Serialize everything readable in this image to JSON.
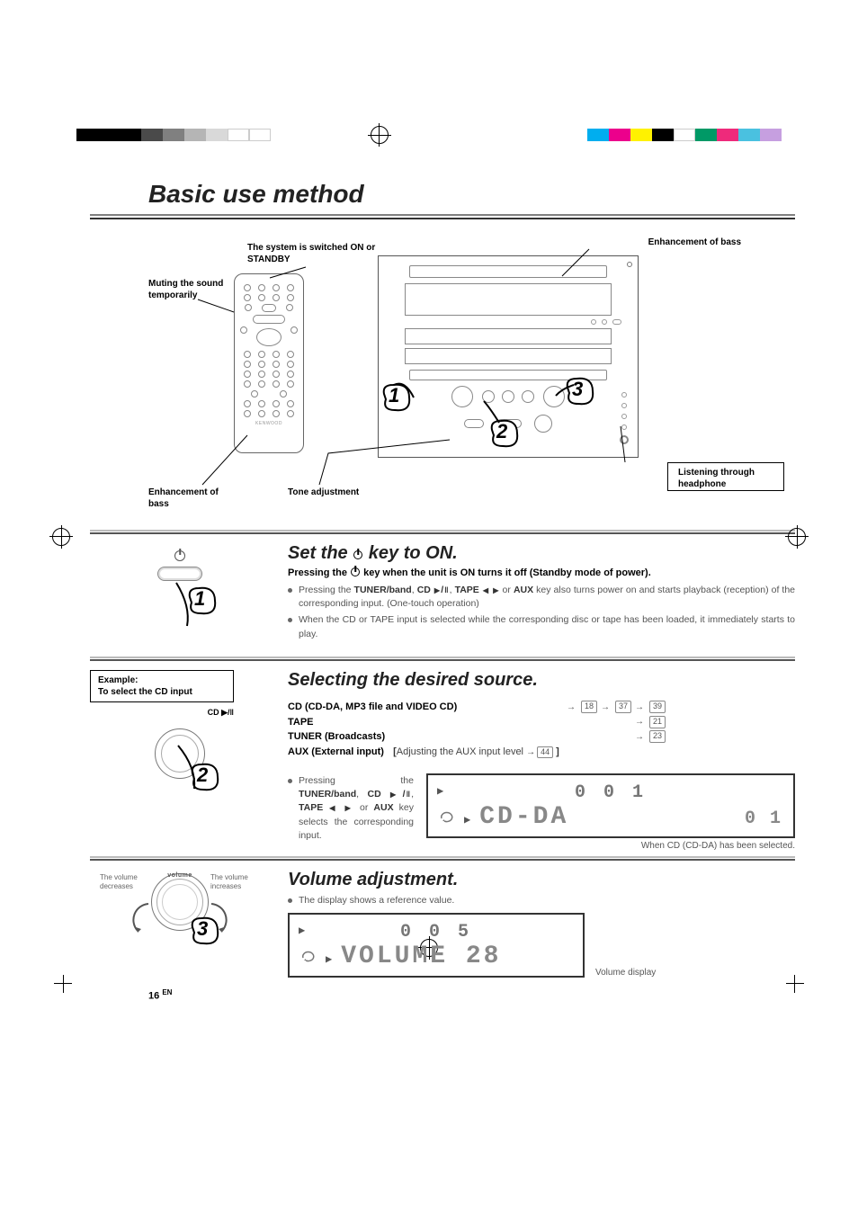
{
  "colorstrip_left": [
    "#000000",
    "#000000",
    "#000000",
    "#4a4a4a",
    "#808080",
    "#b5b5b5",
    "#d9d9d9",
    "#ffffff",
    "#ffffff"
  ],
  "colorstrip_right": [
    "#00aeef",
    "#ec008c",
    "#fff200",
    "#000000",
    "#ffffff",
    "#009966",
    "#ee2a7b",
    "#4ac1e0",
    "#c69fe0"
  ],
  "page_title": "Basic use method",
  "callouts": {
    "system_on": "The system is switched ON or STANDBY",
    "muting": "Muting the sound temporarily",
    "enh_bass_top": "Enhancement of bass",
    "enh_bass_bottom": "Enhancement of bass",
    "tone": "Tone adjustment",
    "headphone": "Listening through headphone"
  },
  "remote_brand": "KENWOOD",
  "step1": {
    "title_a": "Set the ",
    "title_b": " key to ON.",
    "sub_a": "Pressing the ",
    "sub_b": " key when the unit is ON turns it off (Standby mode of power).",
    "bullet1_pre": "Pressing the ",
    "bullet1_keys": "TUNER/band",
    "bullet1_cd": "CD ",
    "bullet1_tape": "TAPE ",
    "bullet1_aux": "AUX",
    "bullet1_post": " key also turns power on and starts playback (reception) of the corresponding input. (One-touch operation)",
    "bullet2": "When the CD or TAPE input is selected while the corresponding disc or tape has been loaded, it immediately starts to play."
  },
  "step2": {
    "title": "Selecting the desired source.",
    "example_l1": "Example:",
    "example_l2": "To select the CD input",
    "knob_label": "CD ▶/‖",
    "rows": [
      {
        "label": "CD (CD-DA, MP3 file and VIDEO CD)",
        "refs": [
          "18",
          "37",
          "39"
        ]
      },
      {
        "label": "TAPE",
        "refs": [
          "21"
        ]
      },
      {
        "label": "TUNER (Broadcasts)",
        "refs": [
          "23"
        ]
      }
    ],
    "aux_label": "AUX (External input)",
    "aux_bracket_a": "[",
    "aux_bracket_text": "Adjusting the AUX input level ",
    "aux_ref": "44",
    "aux_bracket_b": "]",
    "bullet_pre": "Pressing the ",
    "bullet_keys": "TUNER/band",
    "bullet_cd": "CD ",
    "bullet_tape": "TAPE ",
    "bullet_aux": "AUX",
    "bullet_post": " key selects the corresponding input.",
    "lcd_top": "0 0 1",
    "lcd_main": "CD-DA",
    "lcd_right": "0 1",
    "lcd_caption": "When CD (CD-DA) has been selected."
  },
  "step3": {
    "title": "Volume adjustment.",
    "bullet": "The display shows a reference value.",
    "dec": "The volume decreases",
    "inc": "The volume increases",
    "knob_label": "volume",
    "lcd_top": "0 0 5",
    "lcd_main": "VOLUME 28",
    "lcd_caption": "Volume display"
  },
  "page_number": "16",
  "page_lang": "EN"
}
